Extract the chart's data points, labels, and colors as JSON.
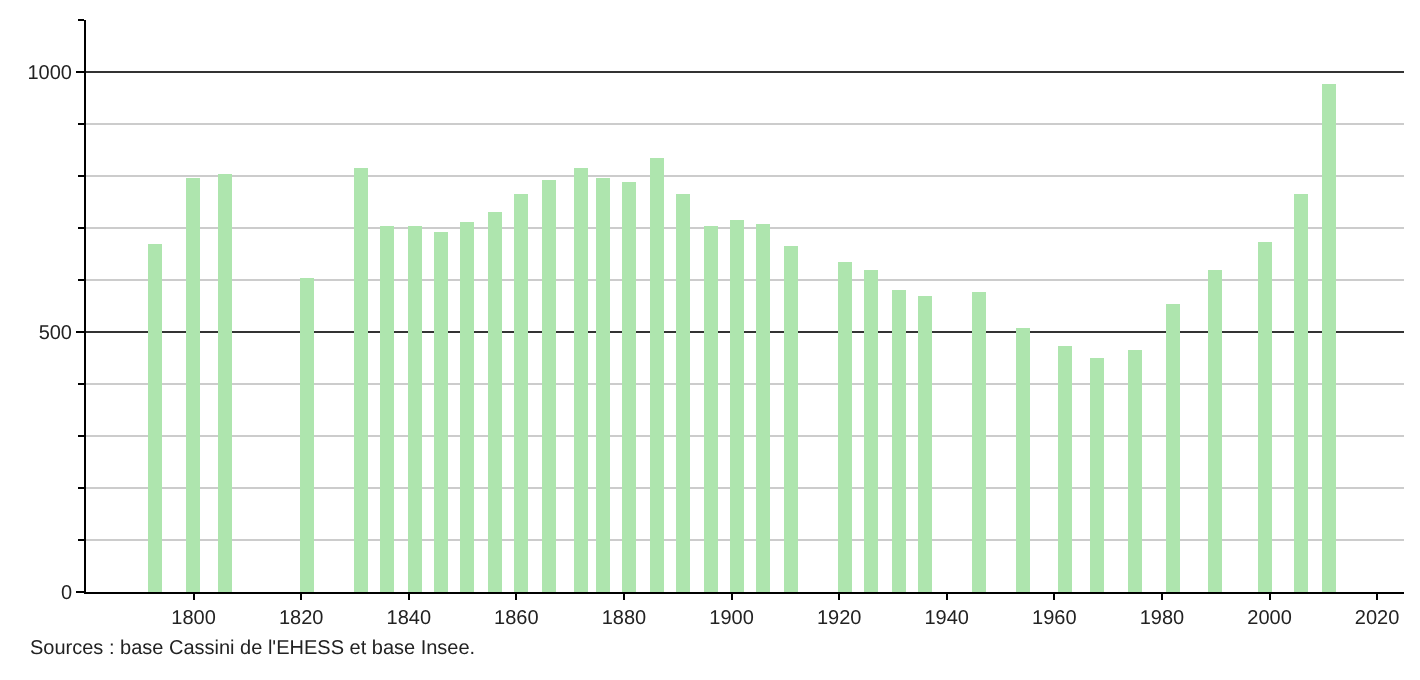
{
  "chart_data": {
    "type": "bar",
    "x": [
      1793,
      1800,
      1806,
      1821,
      1831,
      1836,
      1841,
      1846,
      1851,
      1856,
      1861,
      1866,
      1872,
      1876,
      1881,
      1886,
      1891,
      1896,
      1901,
      1906,
      1911,
      1921,
      1926,
      1931,
      1936,
      1946,
      1954,
      1962,
      1968,
      1975,
      1982,
      1990,
      1999,
      2006,
      2011
    ],
    "values": [
      670,
      798,
      802,
      605,
      814,
      703,
      703,
      692,
      710,
      730,
      764,
      792,
      814,
      796,
      787,
      836,
      764,
      703,
      716,
      707,
      665,
      634,
      619,
      581,
      570,
      578,
      506,
      473,
      449,
      464,
      555,
      620,
      673,
      764,
      977
    ],
    "color": "#aee5ae",
    "xlim": [
      1780,
      2025
    ],
    "xticks": [
      1800,
      1820,
      1840,
      1860,
      1880,
      1900,
      1920,
      1940,
      1960,
      1980,
      2000,
      2020
    ],
    "ylim": [
      0,
      1100
    ],
    "yticks": [
      0,
      {
        "value": 100,
        "label": null
      },
      {
        "value": 200,
        "label": null
      },
      {
        "value": 300,
        "label": null
      },
      {
        "value": 400,
        "label": null
      },
      500,
      {
        "value": 600,
        "label": null
      },
      {
        "value": 700,
        "label": null
      },
      {
        "value": 800,
        "label": null
      },
      {
        "value": 900,
        "label": null
      },
      1000,
      {
        "value": 1100,
        "label": null
      }
    ],
    "grid": "y",
    "annotations": [
      "Sources : base Cassini de l'EHESS et base Insee."
    ]
  }
}
